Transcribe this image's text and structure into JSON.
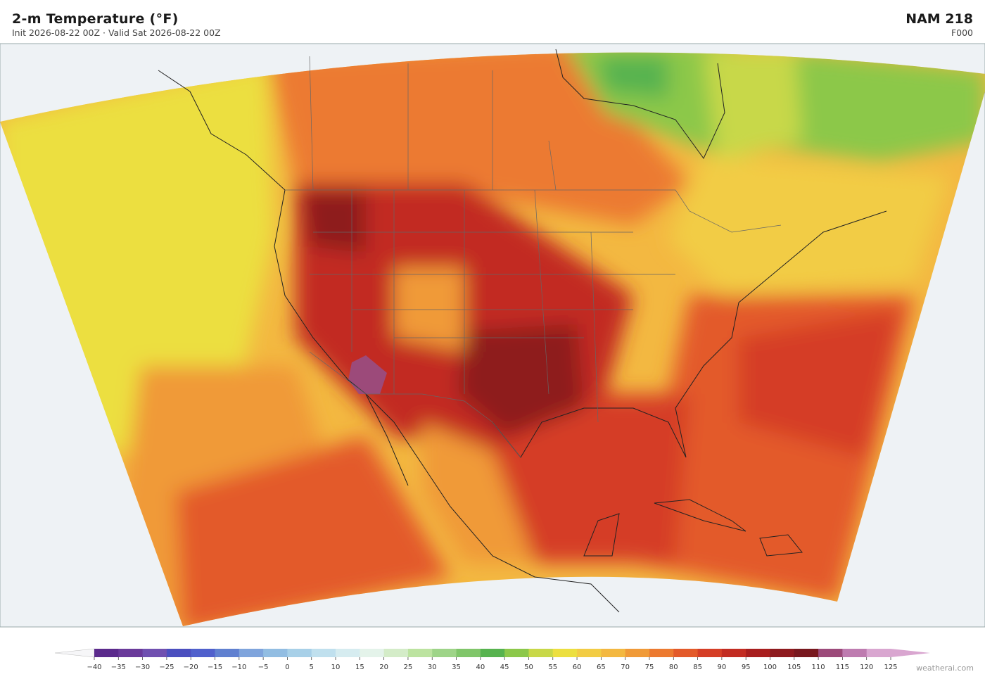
{
  "header": {
    "title": "2-m Temperature  (°F)",
    "subtitle": "Init 2026-08-22 00Z   ·   Valid Sat 2026-08-22 00Z",
    "model": "NAM  218",
    "forecast_hour": "F000"
  },
  "colorbar": {
    "ticks": [
      {
        "value": -40,
        "label": "−40"
      },
      {
        "value": -35,
        "label": "−35"
      },
      {
        "value": -30,
        "label": "−30"
      },
      {
        "value": -25,
        "label": "−25"
      },
      {
        "value": -20,
        "label": "−20"
      },
      {
        "value": -15,
        "label": "−15"
      },
      {
        "value": -10,
        "label": "−10"
      },
      {
        "value": -5,
        "label": "−5"
      },
      0,
      5,
      10,
      15,
      20,
      25,
      30,
      35,
      40,
      45,
      50,
      55,
      60,
      65,
      70,
      75,
      80,
      85,
      90,
      95,
      100,
      105,
      110,
      115,
      120,
      125
    ],
    "colors": [
      "#5b2a8c",
      "#6a3a9a",
      "#7050b0",
      "#4b4fbf",
      "#5060cc",
      "#6080d0",
      "#7fa4dc",
      "#92bde2",
      "#a8d0e8",
      "#c0e0ee",
      "#d6ecf0",
      "#e4f3ea",
      "#d4ecc8",
      "#bce3a0",
      "#9ed488",
      "#80c66a",
      "#57b34f",
      "#8cc84a",
      "#c8d848",
      "#ecdf40",
      "#f2cc44",
      "#f3b841",
      "#f09a38",
      "#ec7a30",
      "#e35a2a",
      "#d53e26",
      "#c22c22",
      "#a81e1e",
      "#8e1a1e",
      "#78181e",
      "#9c4a7a",
      "#be7cb0",
      "#d9a6d0"
    ]
  },
  "credit": "weatherai.com"
}
